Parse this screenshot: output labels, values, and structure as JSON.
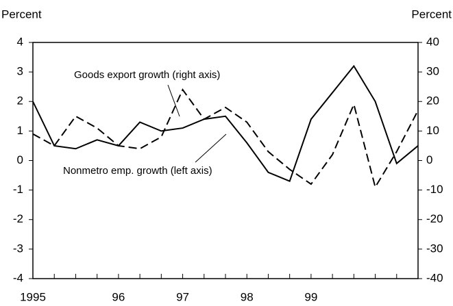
{
  "chart_data": {
    "type": "line",
    "y_label": "Percent",
    "y2_label": "Percent",
    "categories": [
      "1995",
      null,
      null,
      null,
      "96",
      null,
      null,
      "97",
      null,
      null,
      "98",
      null,
      null,
      "99",
      null,
      null,
      null,
      null,
      null
    ],
    "series": [
      {
        "name": "Nonmetro emp. growth (left axis)",
        "color": "#000000",
        "dash": false,
        "values": [
          2.0,
          0.5,
          0.4,
          0.7,
          0.5,
          1.3,
          1.0,
          1.1,
          1.4,
          1.5,
          0.6,
          -0.4,
          -0.7,
          1.4,
          2.3,
          3.2,
          2.0,
          -0.1,
          0.5
        ]
      },
      {
        "name": "Goods export growth (right axis)",
        "color": "#000000",
        "dash": true,
        "axis": "y2",
        "values": [
          9,
          5,
          15,
          11,
          5,
          4,
          8,
          24,
          14,
          18,
          13,
          3,
          -3,
          -8,
          2,
          19,
          -9,
          3,
          17
        ]
      }
    ],
    "ylim": [
      -4,
      4
    ],
    "yticks": [
      -4,
      -3,
      -2,
      -1,
      0,
      1,
      2,
      3,
      4
    ],
    "y2lim": [
      -40,
      40
    ],
    "y2ticks": [
      -40,
      -30,
      -20,
      -10,
      0,
      10,
      20,
      30,
      40
    ]
  }
}
